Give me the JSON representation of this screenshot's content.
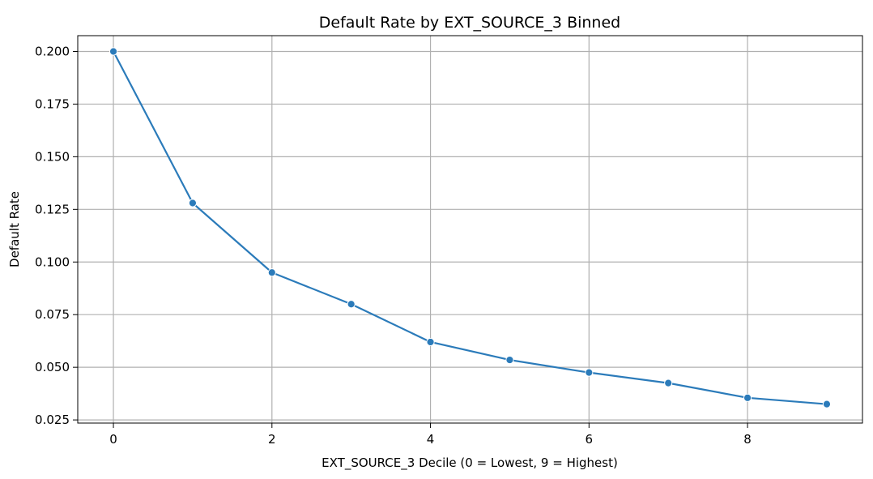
{
  "chart_data": {
    "type": "line",
    "title": "Default Rate by EXT_SOURCE_3 Binned",
    "xlabel": "EXT_SOURCE_3 Decile (0 = Lowest, 9 = Highest)",
    "ylabel": "Default Rate",
    "xlim": [
      -0.45,
      9.45
    ],
    "ylim": [
      0.0235,
      0.2075
    ],
    "xticks": [
      0,
      2,
      4,
      6,
      8
    ],
    "xtick_labels": [
      "0",
      "2",
      "4",
      "6",
      "8"
    ],
    "yticks": [
      0.025,
      0.05,
      0.075,
      0.1,
      0.125,
      0.15,
      0.175,
      0.2
    ],
    "ytick_labels": [
      "0.025",
      "0.050",
      "0.075",
      "0.100",
      "0.125",
      "0.150",
      "0.175",
      "0.200"
    ],
    "grid": true,
    "series": [
      {
        "name": "Default Rate",
        "color": "#2b7bba",
        "marker": "circle",
        "x": [
          0,
          1,
          2,
          3,
          4,
          5,
          6,
          7,
          8,
          9
        ],
        "values": [
          0.2,
          0.128,
          0.095,
          0.08,
          0.062,
          0.0535,
          0.0475,
          0.0425,
          0.0355,
          0.0325
        ]
      }
    ]
  }
}
